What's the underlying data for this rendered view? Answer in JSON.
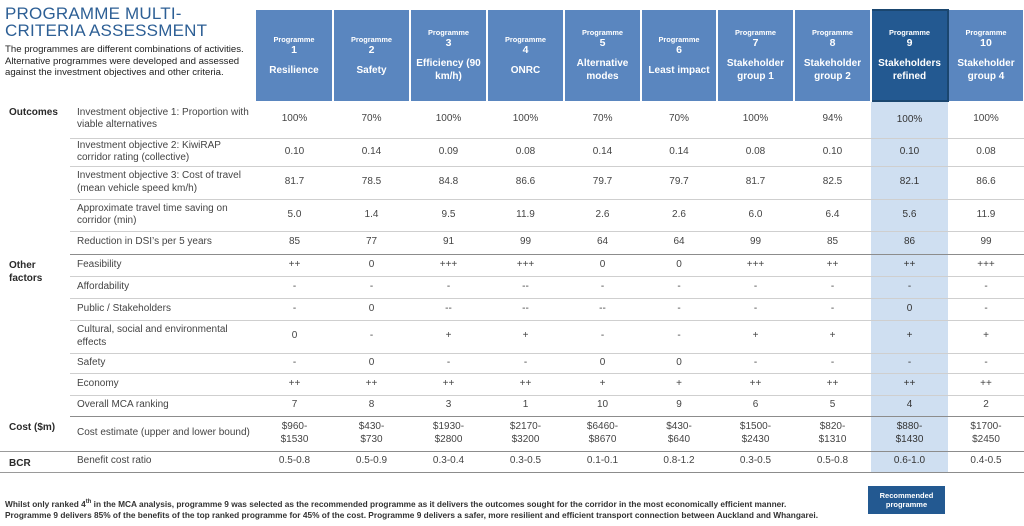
{
  "title": "PROGRAMME MULTI-CRITERIA ASSESSMENT",
  "intro": "The programmes are different combinations of activities. Alternative programmes were developed and assessed against the investment objectives and other criteria.",
  "programme_label": "Programme",
  "programmes": [
    {
      "num": "1",
      "name": "Resilience"
    },
    {
      "num": "2",
      "name": "Safety"
    },
    {
      "num": "3",
      "name": "Efficiency (90 km/h)"
    },
    {
      "num": "4",
      "name": "ONRC"
    },
    {
      "num": "5",
      "name": "Alternative modes"
    },
    {
      "num": "6",
      "name": "Least impact"
    },
    {
      "num": "7",
      "name": "Stakeholder group 1"
    },
    {
      "num": "8",
      "name": "Stakeholder group 2"
    },
    {
      "num": "9",
      "name": "Stakeholders refined"
    },
    {
      "num": "10",
      "name": "Stakeholder group 4"
    }
  ],
  "selected_index": 8,
  "groups": [
    {
      "label": "Outcomes",
      "rows": [
        {
          "criterion": "Investment objective 1: Proportion with viable alternatives",
          "values": [
            "100%",
            "70%",
            "100%",
            "100%",
            "70%",
            "70%",
            "100%",
            "94%",
            "100%",
            "100%"
          ]
        },
        {
          "criterion": "Investment objective 2: KiwiRAP corridor rating (collective)",
          "values": [
            "0.10",
            "0.14",
            "0.09",
            "0.08",
            "0.14",
            "0.14",
            "0.08",
            "0.10",
            "0.10",
            "0.08"
          ]
        },
        {
          "criterion": "Investment objective 3: Cost of travel (mean vehicle speed km/h)",
          "values": [
            "81.7",
            "78.5",
            "84.8",
            "86.6",
            "79.7",
            "79.7",
            "81.7",
            "82.5",
            "82.1",
            "86.6"
          ]
        },
        {
          "criterion": "Approximate travel time saving on corridor (min)",
          "values": [
            "5.0",
            "1.4",
            "9.5",
            "11.9",
            "2.6",
            "2.6",
            "6.0",
            "6.4",
            "5.6",
            "11.9"
          ]
        },
        {
          "criterion": "Reduction in DSI’s per 5 years",
          "values": [
            "85",
            "77",
            "91",
            "99",
            "64",
            "64",
            "99",
            "85",
            "86",
            "99"
          ]
        }
      ]
    },
    {
      "label": "Other factors",
      "rows": [
        {
          "criterion": "Feasibility",
          "values": [
            "++",
            "0",
            "+++",
            "+++",
            "0",
            "0",
            "+++",
            "++",
            "++",
            "+++"
          ]
        },
        {
          "criterion": "Affordability",
          "values": [
            "-",
            "-",
            "-",
            "--",
            "-",
            "-",
            "-",
            "-",
            "-",
            "-"
          ]
        },
        {
          "criterion": "Public / Stakeholders",
          "values": [
            "-",
            "0",
            "--",
            "--",
            "--",
            "-",
            "-",
            "-",
            "0",
            "-"
          ]
        },
        {
          "criterion": "Cultural, social and environmental effects",
          "values": [
            "0",
            "-",
            "+",
            "+",
            "-",
            "-",
            "+",
            "+",
            "+",
            "+"
          ]
        },
        {
          "criterion": "Safety",
          "values": [
            "-",
            "0",
            "-",
            "-",
            "0",
            "0",
            "-",
            "-",
            "-",
            "-"
          ]
        },
        {
          "criterion": "Economy",
          "values": [
            "++",
            "++",
            "++",
            "++",
            "+",
            "+",
            "++",
            "++",
            "++",
            "++"
          ]
        },
        {
          "criterion": "Overall MCA ranking",
          "values": [
            "7",
            "8",
            "3",
            "1",
            "10",
            "9",
            "6",
            "5",
            "4",
            "2"
          ]
        }
      ]
    },
    {
      "label": "Cost ($m)",
      "rows": [
        {
          "criterion": "Cost estimate (upper and lower bound)",
          "values": [
            "$960-\n$1530",
            "$430-\n$730",
            "$1930-\n$2800",
            "$2170-\n$3200",
            "$6460-\n$8670",
            "$430-\n$640",
            "$1500-\n$2430",
            "$820-\n$1310",
            "$880-\n$1430",
            "$1700-\n$2450"
          ]
        }
      ]
    },
    {
      "label": "BCR",
      "rows": [
        {
          "criterion": "Benefit cost ratio",
          "values": [
            "0.5-0.8",
            "0.5-0.9",
            "0.3-0.4",
            "0.3-0.5",
            "0.1-0.1",
            "0.8-1.2",
            "0.3-0.5",
            "0.5-0.8",
            "0.6-1.0",
            "0.4-0.5"
          ]
        }
      ]
    }
  ],
  "recommended_badge": "Recommended programme",
  "footnote": {
    "line1_a": "Whilst only ranked 4",
    "line1_sup": "th",
    "line1_b": " in the MCA analysis, programme 9 was selected as the recommended programme as it delivers the outcomes sought for the corridor in the most economically efficient manner.",
    "line2": "Programme 9 delivers 85% of the benefits of the top ranked programme for 45% of the cost. Programme 9 delivers a safer, more resilient and efficient transport connection between Auckland and Whangarei."
  },
  "colors": {
    "header_blue": "#5a86bf",
    "selected_header": "#235991",
    "selected_column": "#cfdff1",
    "title_blue": "#2d5f95"
  }
}
